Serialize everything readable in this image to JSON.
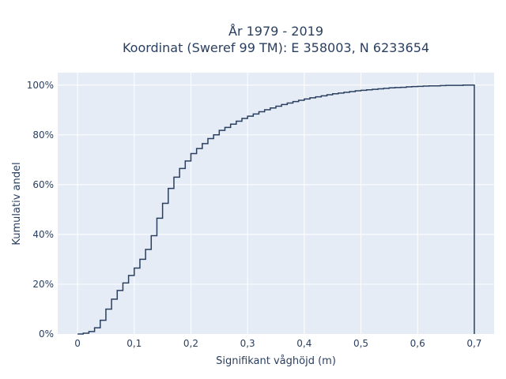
{
  "chart_data": {
    "type": "line",
    "subtype": "cumulative-step",
    "title_line1": "År 1979 - 2019",
    "title_line2": "Koordinat (Sweref 99 TM): E 358003, N 6233654",
    "xlabel": "Signifikant våghöjd (m)",
    "ylabel": "Kumulativ andel",
    "xlim": [
      -0.035,
      0.735
    ],
    "ylim": [
      0,
      1.05
    ],
    "x_ticks": [
      0,
      0.1,
      0.2,
      0.3,
      0.4,
      0.5,
      0.6,
      0.7
    ],
    "x_tick_labels": [
      "0",
      "0,1",
      "0,2",
      "0,3",
      "0,4",
      "0,5",
      "0,6",
      "0,7"
    ],
    "y_ticks": [
      0,
      0.2,
      0.4,
      0.6,
      0.8,
      1.0
    ],
    "y_tick_labels": [
      "0%",
      "20%",
      "40%",
      "60%",
      "80%",
      "100%"
    ],
    "grid": true,
    "colors": {
      "plot_bg": "#e5ecf6",
      "grid": "#ffffff",
      "line": "#2a3f5f"
    },
    "x": [
      0,
      0.01,
      0.02,
      0.03,
      0.04,
      0.05,
      0.06,
      0.07,
      0.08,
      0.09,
      0.1,
      0.11,
      0.12,
      0.13,
      0.14,
      0.15,
      0.16,
      0.17,
      0.18,
      0.19,
      0.2,
      0.21,
      0.22,
      0.23,
      0.24,
      0.25,
      0.26,
      0.27,
      0.28,
      0.29,
      0.3,
      0.31,
      0.32,
      0.33,
      0.34,
      0.35,
      0.36,
      0.37,
      0.38,
      0.39,
      0.4,
      0.41,
      0.42,
      0.43,
      0.44,
      0.45,
      0.46,
      0.47,
      0.48,
      0.49,
      0.5,
      0.51,
      0.52,
      0.53,
      0.54,
      0.55,
      0.56,
      0.57,
      0.58,
      0.59,
      0.6,
      0.61,
      0.62,
      0.63,
      0.64,
      0.65,
      0.66,
      0.67,
      0.68,
      0.69,
      0.7
    ],
    "y": [
      0.0,
      0.003,
      0.01,
      0.025,
      0.055,
      0.1,
      0.14,
      0.175,
      0.205,
      0.235,
      0.265,
      0.3,
      0.34,
      0.395,
      0.465,
      0.525,
      0.585,
      0.63,
      0.665,
      0.695,
      0.725,
      0.745,
      0.765,
      0.785,
      0.8,
      0.818,
      0.83,
      0.843,
      0.855,
      0.866,
      0.875,
      0.884,
      0.893,
      0.901,
      0.908,
      0.915,
      0.922,
      0.928,
      0.934,
      0.939,
      0.944,
      0.949,
      0.953,
      0.957,
      0.961,
      0.965,
      0.968,
      0.971,
      0.974,
      0.977,
      0.979,
      0.981,
      0.983,
      0.985,
      0.987,
      0.989,
      0.99,
      0.991,
      0.993,
      0.994,
      0.995,
      0.996,
      0.997,
      0.997,
      0.998,
      0.999,
      0.999,
      0.999,
      1.0,
      1.0,
      1.0
    ]
  }
}
